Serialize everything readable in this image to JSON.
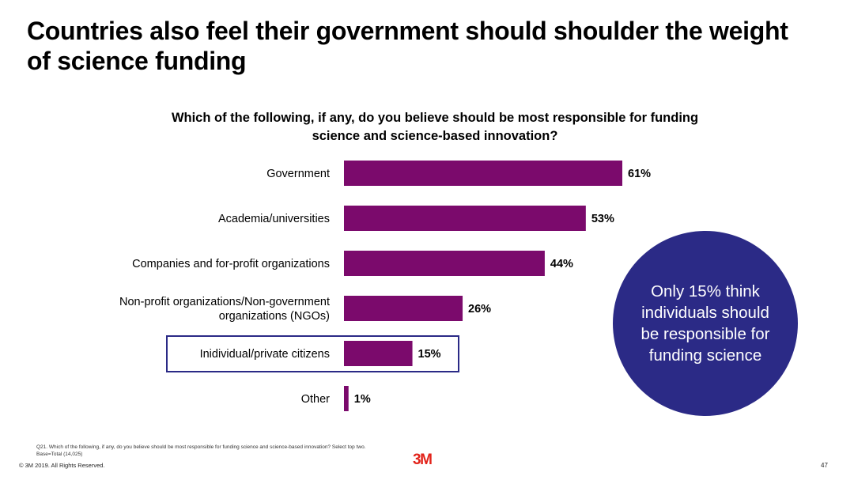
{
  "slide": {
    "title": "Countries also feel their government should shoulder the weight of science funding"
  },
  "chart_data": {
    "type": "bar",
    "orientation": "horizontal",
    "title": "Which of the following, if any, do you believe should be most responsible for funding science and science-based innovation?",
    "categories": [
      "Government",
      "Academia/universities",
      "Companies and for-profit organizations",
      "Non-profit organizations/Non-government organizations (NGOs)",
      "Inidividual/private citizens",
      "Other"
    ],
    "category_lines": [
      [
        "Government"
      ],
      [
        "Academia/universities"
      ],
      [
        "Companies and for-profit organizations"
      ],
      [
        "Non-profit organizations/Non-government",
        "organizations (NGOs)"
      ],
      [
        "Inidividual/private citizens"
      ],
      [
        "Other"
      ]
    ],
    "values": [
      61,
      53,
      44,
      26,
      15,
      1
    ],
    "value_labels": [
      "61%",
      "53%",
      "44%",
      "26%",
      "15%",
      "1%"
    ],
    "unit": "%",
    "xlim": [
      0,
      61
    ],
    "highlighted_category": "Inidividual/private citizens",
    "bar_color": "#7b0a6c",
    "grid": false,
    "legend": "none"
  },
  "callout": {
    "text": "Only 15% think individuals should be responsible for funding science",
    "color": "#2b2a86"
  },
  "footer": {
    "footnote": "Q21. Which of the following, if any, do you believe should be most responsible for funding science and science-based innovation? Select top two. Base=Total (14,025)",
    "copyright": "© 3M 2019.   All Rights Reserved.",
    "logo_text": "3M",
    "logo_color": "#e2231a",
    "page_number": "47"
  }
}
